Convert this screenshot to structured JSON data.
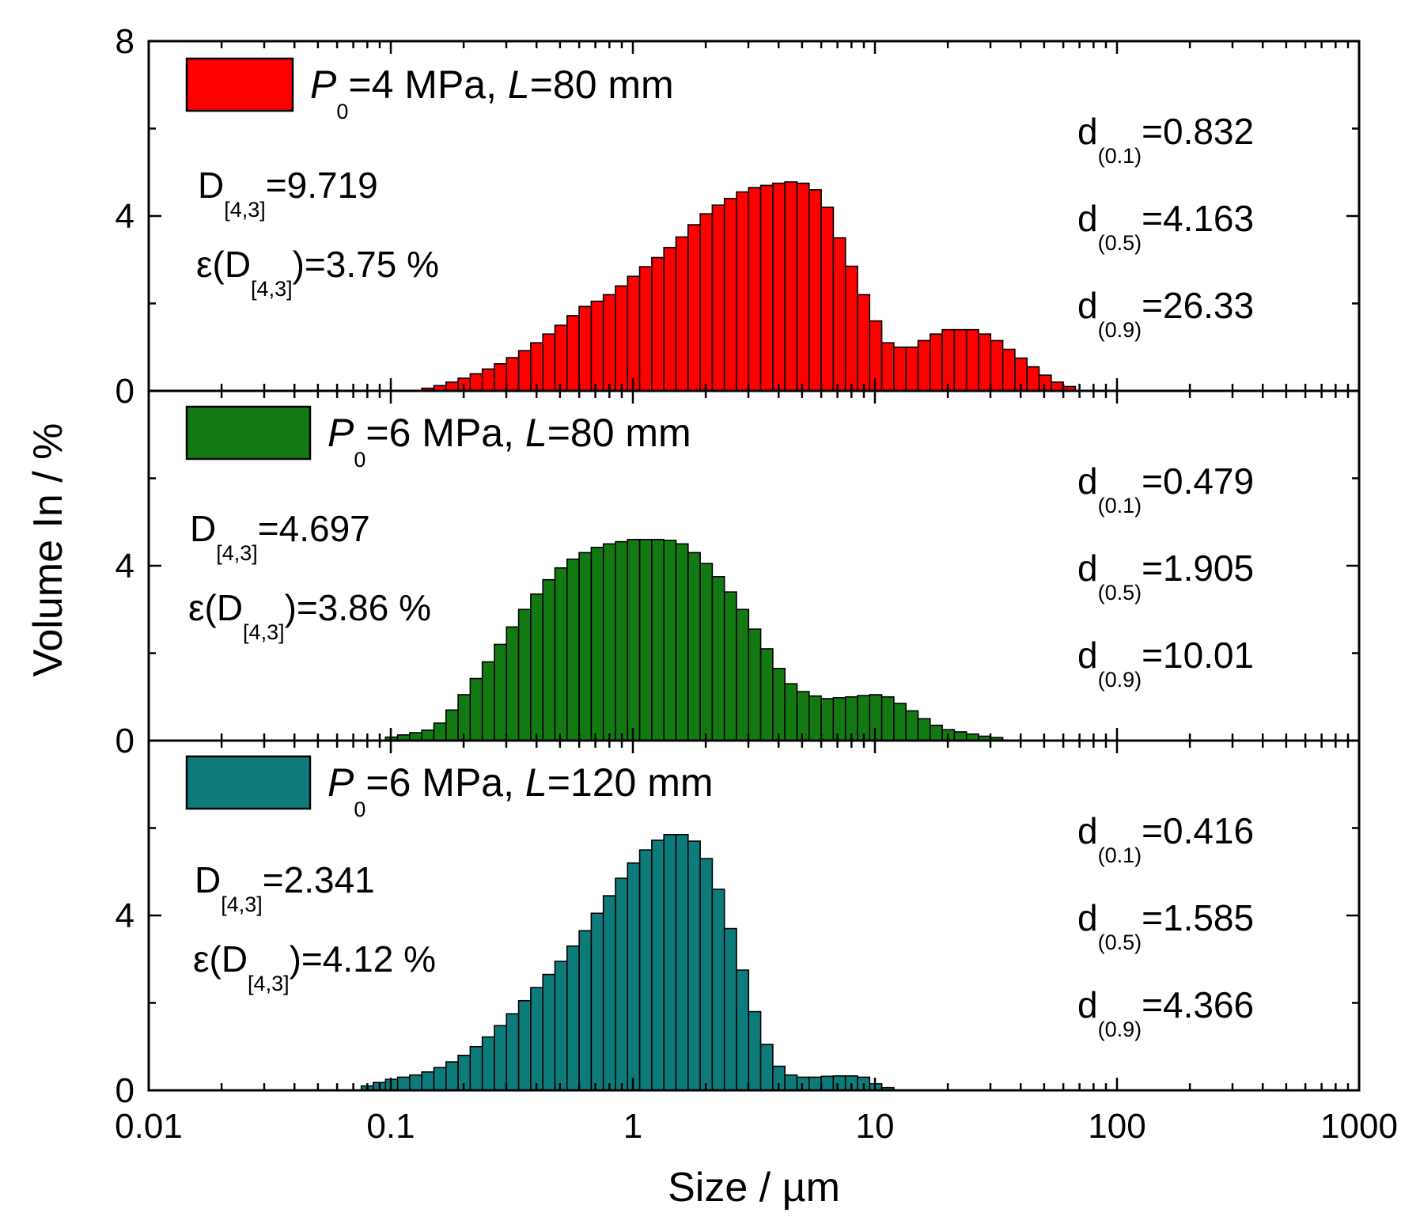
{
  "chart_data": {
    "type": "bar",
    "xlabel": "Size / µm",
    "ylabel": "Volume In / %",
    "xscale": "log",
    "xlim": [
      0.01,
      1000
    ],
    "xticks": [
      {
        "value": 0.01,
        "label": "0.01"
      },
      {
        "value": 0.1,
        "label": "0.1"
      },
      {
        "value": 1,
        "label": "1"
      },
      {
        "value": 10,
        "label": "10"
      },
      {
        "value": 100,
        "label": "100"
      },
      {
        "value": 1000,
        "label": "1000"
      }
    ],
    "ylim": [
      0,
      8
    ],
    "bins_per_decade": 20,
    "first_bin_center": 0.08,
    "panels": [
      {
        "legend": {
          "label_prefix": "P",
          "label_sub": "0",
          "label_rest": "=4 MPa, L=80 mm",
          "color": "#ff0000"
        },
        "yticks": [
          {
            "value": 0,
            "label": "0"
          },
          {
            "value": 4,
            "label": "4"
          },
          {
            "value": 8,
            "label": "8"
          }
        ],
        "stats": {
          "D43_prefix": "D",
          "D43_sub": "[4,3]",
          "D43_value": "=9.719",
          "err_prefix": "ε(D",
          "err_sub": "[4,3]",
          "err_value": ")=3.75 %",
          "d01_prefix": "d",
          "d01_sub": "(0.1)",
          "d01_value": "=0.832",
          "d05_prefix": "d",
          "d05_sub": "(0.5)",
          "d05_value": "=4.163",
          "d09_prefix": "d",
          "d09_sub": "(0.9)",
          "d09_value": "=26.33"
        },
        "values": [
          0,
          0,
          0,
          0,
          0,
          0.06,
          0.12,
          0.2,
          0.29,
          0.39,
          0.5,
          0.62,
          0.76,
          0.92,
          1.1,
          1.3,
          1.5,
          1.72,
          1.93,
          2.05,
          2.2,
          2.4,
          2.62,
          2.84,
          3.05,
          3.28,
          3.52,
          3.8,
          4.05,
          4.25,
          4.4,
          4.55,
          4.65,
          4.7,
          4.75,
          4.78,
          4.75,
          4.6,
          4.2,
          3.5,
          2.85,
          2.2,
          1.6,
          1.1,
          1.0,
          1.0,
          1.15,
          1.3,
          1.4,
          1.4,
          1.4,
          1.3,
          1.15,
          0.95,
          0.75,
          0.55,
          0.36,
          0.2,
          0.1
        ]
      },
      {
        "legend": {
          "label_prefix": "P",
          "label_sub": "0",
          "label_rest": "=6 MPa, L=80 mm",
          "color": "#137a13"
        },
        "yticks": [
          {
            "value": 0,
            "label": "0"
          },
          {
            "value": 4,
            "label": "4"
          }
        ],
        "stats": {
          "D43_prefix": "D",
          "D43_sub": "[4,3]",
          "D43_value": "=4.697",
          "err_prefix": "ε(D",
          "err_sub": "[4,3]",
          "err_value": ")=3.86 %",
          "d01_prefix": "d",
          "d01_sub": "(0.1)",
          "d01_value": "=0.479",
          "d05_prefix": "d",
          "d05_sub": "(0.5)",
          "d05_value": "=1.905",
          "d09_prefix": "d",
          "d09_sub": "(0.9)",
          "d09_value": "=10.01"
        },
        "values": [
          0,
          0,
          0.08,
          0.13,
          0.18,
          0.24,
          0.4,
          0.7,
          1.05,
          1.42,
          1.8,
          2.2,
          2.6,
          3.0,
          3.35,
          3.68,
          3.95,
          4.15,
          4.3,
          4.42,
          4.5,
          4.55,
          4.6,
          4.6,
          4.6,
          4.58,
          4.5,
          4.3,
          4.05,
          3.75,
          3.4,
          3.0,
          2.55,
          2.1,
          1.65,
          1.3,
          1.12,
          1.02,
          0.96,
          0.98,
          1.0,
          1.03,
          1.05,
          1.0,
          0.85,
          0.68,
          0.5,
          0.35,
          0.25,
          0.2,
          0.15,
          0.1,
          0.07
        ]
      },
      {
        "legend": {
          "label_prefix": "P",
          "label_sub": "0",
          "label_rest": "=6 MPa, L=120 mm",
          "color": "#0e7b7b"
        },
        "yticks": [
          {
            "value": 0,
            "label": "0"
          },
          {
            "value": 4,
            "label": "4"
          }
        ],
        "stats": {
          "D43_prefix": "D",
          "D43_sub": "[4,3]",
          "D43_value": "=2.341",
          "err_prefix": "ε(D",
          "err_sub": "[4,3]",
          "err_value": ")=4.12 %",
          "d01_prefix": "d",
          "d01_sub": "(0.1)",
          "d01_value": "=0.416",
          "d05_prefix": "d",
          "d05_sub": "(0.5)",
          "d05_value": "=1.585",
          "d09_prefix": "d",
          "d09_sub": "(0.9)",
          "d09_value": "=4.366"
        },
        "values": [
          0.1,
          0.18,
          0.25,
          0.3,
          0.35,
          0.42,
          0.52,
          0.65,
          0.8,
          1.0,
          1.22,
          1.48,
          1.75,
          2.05,
          2.35,
          2.65,
          2.95,
          3.3,
          3.65,
          4.05,
          4.45,
          4.85,
          5.2,
          5.5,
          5.72,
          5.85,
          5.85,
          5.7,
          5.3,
          4.6,
          3.7,
          2.75,
          1.8,
          1.05,
          0.55,
          0.35,
          0.3,
          0.3,
          0.32,
          0.33,
          0.33,
          0.3,
          0.15,
          0.06
        ]
      }
    ]
  }
}
